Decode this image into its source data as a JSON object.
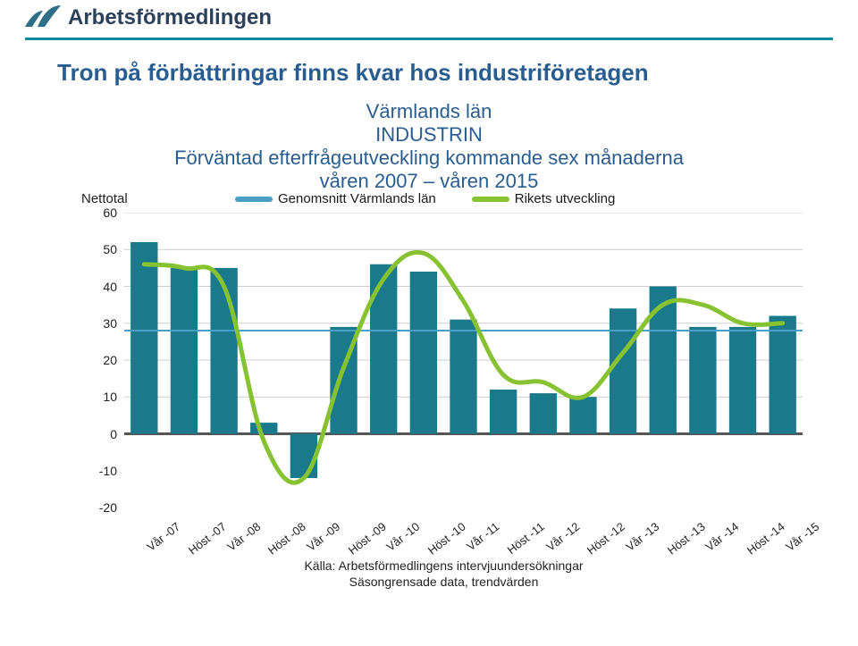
{
  "header": {
    "brand": "Arbetsförmedlingen",
    "brand_color": "#2d405a",
    "accent_line_color": "#0a8c9e"
  },
  "title": "Tron på förbättringar finns kvar hos industriföretagen",
  "subtitle": {
    "line1": "Värmlands län",
    "line2": "INDUSTRIN",
    "line3": "Förväntad efterfrågeutveckling kommande sex månaderna",
    "line4": "våren 2007 – våren 2015"
  },
  "chart": {
    "type": "bar+line",
    "y_axis_title": "Nettotal",
    "legend": [
      {
        "label": "Genomsnitt Värmlands län",
        "color": "#4aa0c4"
      },
      {
        "label": "Rikets utveckling",
        "color": "#86c232"
      }
    ],
    "background_color": "#ffffff",
    "grid_color": "#cfcfcf",
    "baseline_color": "#555555",
    "bar_color": "#1a7a8c",
    "bar_width_ratio": 0.68,
    "ylim": [
      -20,
      60
    ],
    "ytick_step": 10,
    "categories": [
      "Vår -07",
      "Höst -07",
      "Vår -08",
      "Höst -08",
      "Vår -09",
      "Höst -09",
      "Vår -10",
      "Höst -10",
      "Vår -11",
      "Höst -11",
      "Vår -12",
      "Höst -12",
      "Vår -13",
      "Höst -13",
      "Vår -14",
      "Höst -14",
      "Vår -15"
    ],
    "bars": [
      52,
      45,
      45,
      3,
      -12,
      29,
      46,
      44,
      31,
      12,
      11,
      10,
      34,
      40,
      29,
      29,
      32
    ],
    "avg_line_value": 28,
    "riket": [
      46,
      45,
      40,
      -2,
      -12,
      18,
      42,
      49,
      36,
      16,
      14,
      10,
      22,
      35,
      35,
      30,
      30
    ],
    "label_fontsize": 14,
    "tick_fontsize": 13,
    "source_line1": "Källa: Arbetsförmedlingens intervjuundersökningar",
    "source_line2": "Säsongrensade data, trendvärden"
  },
  "colors": {
    "title_color": "#2a5d8f"
  }
}
